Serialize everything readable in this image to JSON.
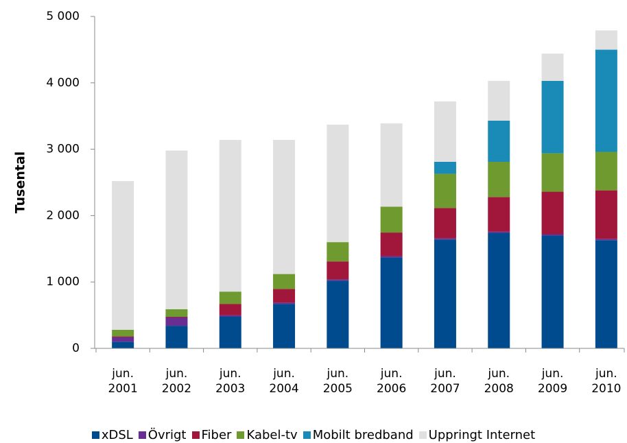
{
  "chart_data": {
    "type": "stacked_bar",
    "y_label": "Tusental",
    "categories": [
      "jun. 2001",
      "jun. 2002",
      "jun. 2003",
      "jun. 2004",
      "jun. 2005",
      "jun. 2006",
      "jun. 2007",
      "jun. 2008",
      "jun. 2009",
      "jun. 2010"
    ],
    "series": [
      {
        "name": "xDSL",
        "color": "#004b8d",
        "values": [
          100,
          340,
          480,
          670,
          1020,
          1370,
          1640,
          1740,
          1700,
          1630
        ]
      },
      {
        "name": "Övrigt",
        "color": "#6a2d91",
        "values": [
          70,
          125,
          20,
          20,
          20,
          20,
          20,
          20,
          20,
          20
        ]
      },
      {
        "name": "Fiber",
        "color": "#a0173b",
        "values": [
          10,
          10,
          170,
          205,
          270,
          355,
          455,
          520,
          640,
          730
        ]
      },
      {
        "name": "Kabel-tv",
        "color": "#6f9a2f",
        "values": [
          100,
          115,
          185,
          225,
          290,
          390,
          515,
          530,
          580,
          580
        ]
      },
      {
        "name": "Mobilt bredband",
        "color": "#1a8bb6",
        "values": [
          0,
          0,
          0,
          0,
          0,
          0,
          180,
          620,
          1090,
          1540
        ]
      },
      {
        "name": "Uppringt Internet",
        "color": "#e0e0e0",
        "values": [
          2240,
          2390,
          2285,
          2020,
          1770,
          1255,
          910,
          600,
          410,
          290
        ]
      }
    ],
    "ylim": [
      0,
      5000
    ],
    "yticks": [
      0,
      {
        "value": 1000,
        "label": "1 000"
      },
      {
        "value": 2000,
        "label": "2 000"
      },
      {
        "value": 3000,
        "label": "3 000"
      },
      {
        "value": 4000,
        "label": "4 000"
      },
      {
        "value": 5000,
        "label": "5 000"
      }
    ],
    "legend": "bottom"
  }
}
